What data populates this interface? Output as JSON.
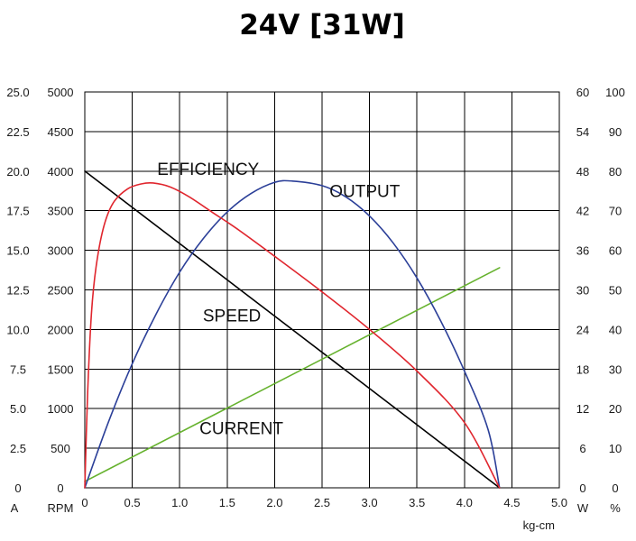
{
  "chart_data": {
    "type": "line",
    "title": "24V [31W]",
    "xlabel": "kg-cm",
    "xlim": [
      0,
      5.0
    ],
    "x_ticks": [
      "0",
      "0.5",
      "1.0",
      "1.5",
      "2.0",
      "2.5",
      "3.0",
      "3.5",
      "4.0",
      "4.5",
      "5.0"
    ],
    "grid": true,
    "y_axes": [
      {
        "id": "A",
        "unit": "A",
        "side": "left",
        "lim": [
          0,
          25
        ],
        "ticks": [
          "0",
          "2.5",
          "5.0",
          "7.5",
          "10.0",
          "12.5",
          "15.0",
          "17.5",
          "20.0",
          "22.5",
          "25.0"
        ]
      },
      {
        "id": "RPM",
        "unit": "RPM",
        "side": "left",
        "lim": [
          0,
          5000
        ],
        "ticks": [
          "0",
          "500",
          "1000",
          "1500",
          "2000",
          "2500",
          "3000",
          "3500",
          "4000",
          "4500",
          "5000"
        ]
      },
      {
        "id": "W",
        "unit": "W",
        "side": "right",
        "lim": [
          0,
          60
        ],
        "ticks": [
          "0",
          "6",
          "12",
          "18",
          "24",
          "30",
          "36",
          "42",
          "48",
          "54",
          "60"
        ]
      },
      {
        "id": "pct",
        "unit": "%",
        "side": "right",
        "lim": [
          0,
          100
        ],
        "ticks": [
          "0",
          "10",
          "20",
          "30",
          "40",
          "50",
          "60",
          "70",
          "80",
          "90",
          "100"
        ]
      }
    ],
    "series": [
      {
        "name": "SPEED",
        "axis": "RPM",
        "color": "#000000",
        "x": [
          0,
          4.37
        ],
        "y": [
          4000,
          0
        ]
      },
      {
        "name": "CURRENT",
        "axis": "A",
        "color": "#66b22e",
        "x": [
          0,
          4.37
        ],
        "y": [
          0.4,
          13.9
        ]
      },
      {
        "name": "OUTPUT",
        "axis": "W",
        "color": "#2b3f98",
        "x": [
          0,
          0.25,
          0.5,
          0.75,
          1.0,
          1.25,
          1.5,
          1.75,
          2.0,
          2.185,
          2.5,
          2.75,
          3.0,
          3.25,
          3.5,
          3.75,
          4.0,
          4.25,
          4.37
        ],
        "y": [
          0,
          10.0,
          18.8,
          26.3,
          32.7,
          37.8,
          41.8,
          44.6,
          46.3,
          46.5,
          45.8,
          44.1,
          41.2,
          37.1,
          31.8,
          25.3,
          17.7,
          8.8,
          0
        ]
      },
      {
        "name": "EFFICIENCY",
        "axis": "pct",
        "color": "#e0262e",
        "x": [
          0,
          0.03,
          0.07,
          0.12,
          0.2,
          0.3,
          0.45,
          0.6,
          0.72,
          0.9,
          1.1,
          1.35,
          1.6,
          2.0,
          2.5,
          3.0,
          3.5,
          4.0,
          4.37
        ],
        "y": [
          0,
          24,
          44,
          56,
          66,
          72,
          75.5,
          76.8,
          77,
          76,
          73.5,
          69.5,
          65.5,
          58.5,
          49.5,
          40,
          29.5,
          16.5,
          0
        ]
      }
    ],
    "annotations": [
      {
        "text": "EFFICIENCY",
        "x": 1.3,
        "pct": 79
      },
      {
        "text": "OUTPUT",
        "x": 2.95,
        "pct": 73.5
      },
      {
        "text": "SPEED",
        "x": 1.55,
        "pct": 42
      },
      {
        "text": "CURRENT",
        "x": 1.65,
        "pct": 13.5
      }
    ]
  }
}
